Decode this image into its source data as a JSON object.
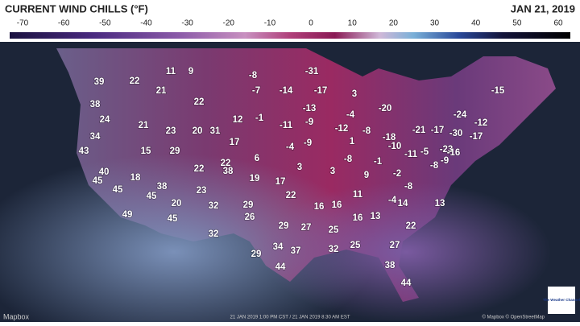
{
  "header": {
    "title": "CURRENT WIND CHILLS (°F)",
    "date": "JAN 21, 2019"
  },
  "legend": {
    "ticks": [
      -70,
      -60,
      -50,
      -40,
      -30,
      -20,
      -10,
      0,
      10,
      20,
      30,
      40,
      50,
      60
    ]
  },
  "map": {
    "labels": [
      39,
      22,
      11,
      9,
      -8,
      -31,
      21,
      -7,
      -14,
      -17,
      3,
      -15,
      38,
      22,
      -13,
      -20,
      -24,
      24,
      21,
      12,
      -1,
      -11,
      -4,
      -12,
      34,
      23,
      20,
      31,
      -9,
      -12,
      -8,
      -18,
      -21,
      -17,
      -30,
      -17,
      43,
      15,
      29,
      17,
      -4,
      -9,
      1,
      -10,
      -23,
      -16,
      6,
      -8,
      -1,
      -11,
      -5,
      -9,
      40,
      22,
      22,
      38,
      3,
      3,
      9,
      -2,
      -8,
      45,
      18,
      19,
      17,
      45,
      38,
      23,
      22,
      -8,
      45,
      11,
      -4,
      14,
      13,
      20,
      32,
      29,
      16,
      16,
      49,
      45,
      26,
      13,
      16,
      22,
      29,
      27,
      25,
      32,
      34,
      37,
      32,
      25,
      27,
      29,
      44,
      38,
      44
    ]
  },
  "footer": {
    "credit": "Mapbox",
    "timestamp": "21 JAN 2019 1:00 PM CST / 21 JAN 2019 8:30 AM EST",
    "attribution": "© Mapbox © OpenStreetMap",
    "logo": "The Weather Channel"
  }
}
